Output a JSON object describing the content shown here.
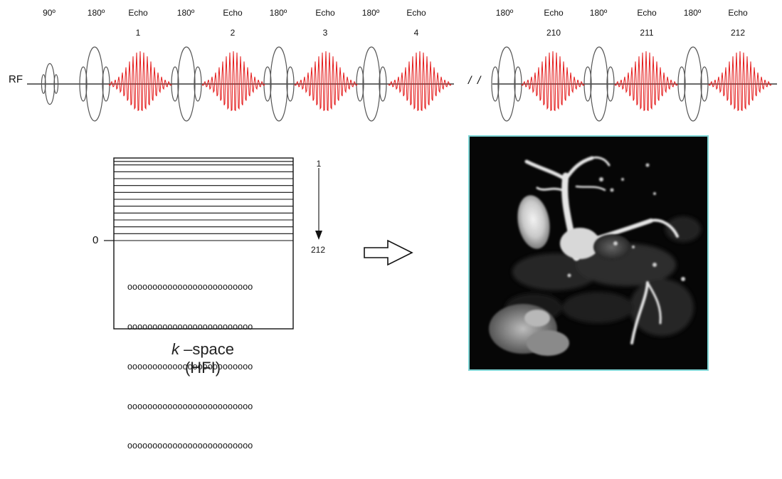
{
  "sequence": {
    "rf_label": "RF",
    "break_mark": "/ /",
    "pulses_left": [
      {
        "angle": "90º"
      },
      {
        "angle": "180º",
        "echo": "Echo",
        "echo_number": "1"
      },
      {
        "angle": "180º",
        "echo": "Echo",
        "echo_number": "2"
      },
      {
        "angle": "180º",
        "echo": "Echo",
        "echo_number": "3"
      },
      {
        "angle": "180º",
        "echo": "Echo",
        "echo_number": "4"
      }
    ],
    "pulses_right": [
      {
        "angle": "180º",
        "echo": "Echo",
        "echo_number": "210"
      },
      {
        "angle": "180º",
        "echo": "Echo",
        "echo_number": "211"
      },
      {
        "angle": "180º",
        "echo": "Echo",
        "echo_number": "212"
      }
    ],
    "colors": {
      "pulse": "#555555",
      "echo": "#e41a1a",
      "axis": "#111111"
    }
  },
  "kspace": {
    "zero_label": "0",
    "order_start": "1",
    "order_end": "212",
    "filled_line_count": 12,
    "zero_rows": [
      "ooooooooooooooooooooooooo",
      "ooooooooooooooooooooooooo",
      "ooooooooooooooooooooooooo",
      "ooooooooooooooooooooooooo",
      "ooooooooooooooooooooooooo"
    ],
    "caption_k": "k",
    "caption_rest": " –space",
    "caption_line2": "(HFI)"
  },
  "result_image": {
    "border_color": "#7fd6d6"
  }
}
